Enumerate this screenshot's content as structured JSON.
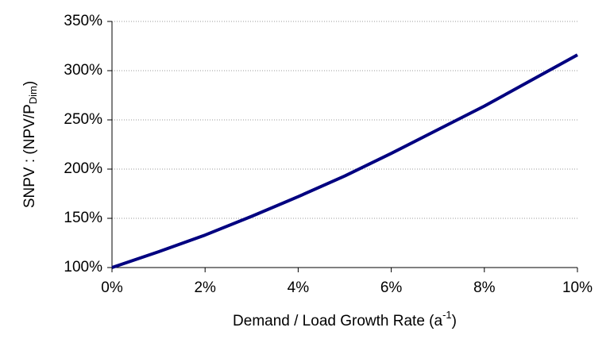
{
  "chart_data": {
    "type": "line",
    "ylabel": {
      "main": "SNPV : (NPV/P",
      "sub": "Dim",
      "end": ")"
    },
    "xlabel": {
      "main": "Demand / Load Growth Rate (a",
      "sup": "-1",
      "end": ")"
    },
    "x": [
      0,
      1,
      2,
      3,
      4,
      5,
      6,
      7,
      8,
      9,
      10
    ],
    "values": [
      100,
      116,
      133,
      152,
      172,
      193,
      216,
      240,
      264,
      290,
      316
    ],
    "color": "#000080",
    "xlim": [
      0,
      10
    ],
    "xticks": [
      {
        "value": 0,
        "label": "0%"
      },
      {
        "value": 2,
        "label": "2%"
      },
      {
        "value": 4,
        "label": "4%"
      },
      {
        "value": 6,
        "label": "6%"
      },
      {
        "value": 8,
        "label": "8%"
      },
      {
        "value": 10,
        "label": "10%"
      }
    ],
    "ylim": [
      100,
      350
    ],
    "yticks": [
      {
        "value": 100,
        "label": "100%"
      },
      {
        "value": 150,
        "label": "150%"
      },
      {
        "value": 200,
        "label": "200%"
      },
      {
        "value": 250,
        "label": "250%"
      },
      {
        "value": 300,
        "label": "300%"
      },
      {
        "value": 350,
        "label": "350%"
      }
    ],
    "grid": true
  }
}
